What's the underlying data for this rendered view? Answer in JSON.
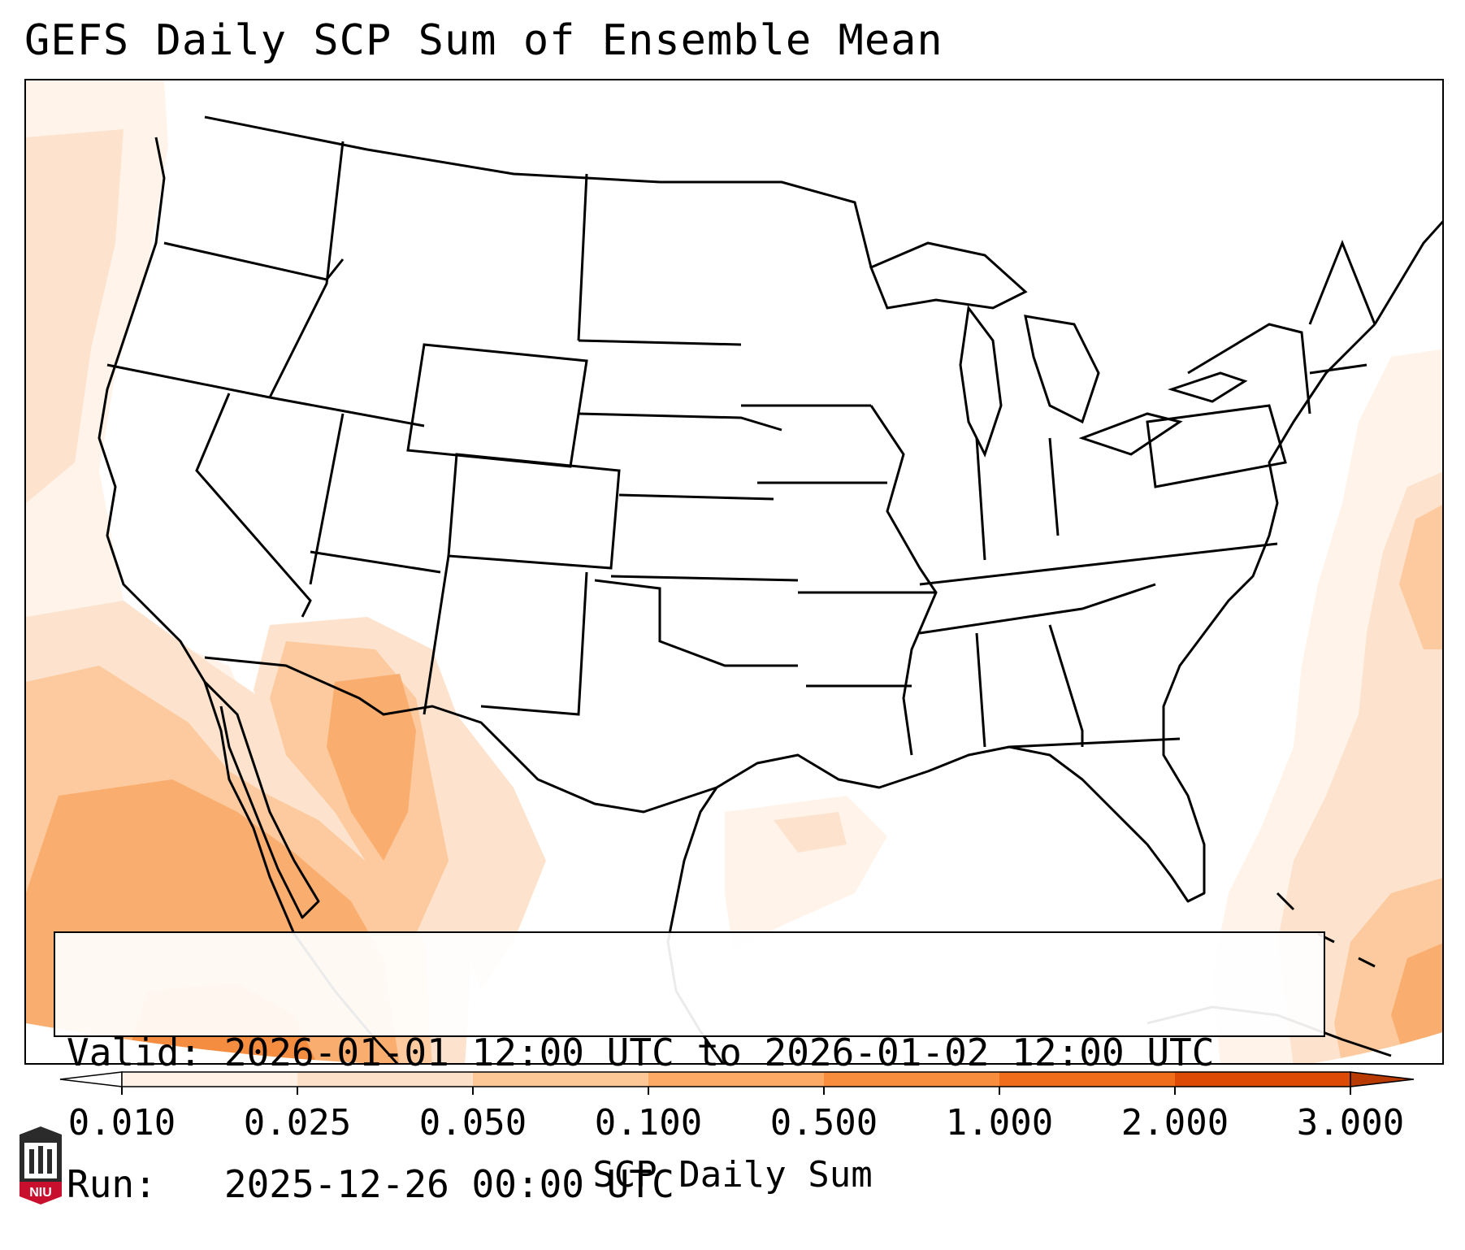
{
  "title": "GEFS Daily SCP Sum of Ensemble Mean",
  "info": {
    "valid_label": "Valid:",
    "valid_value": "2026-01-01 12:00 UTC to 2026-01-02 12:00 UTC",
    "run_label": "Run:",
    "run_value": "2025-12-26 00:00 UTC"
  },
  "colorbar": {
    "label": "SCP Daily Sum",
    "ticks": [
      "0.010",
      "0.025",
      "0.050",
      "0.100",
      "0.500",
      "1.000",
      "2.000",
      "3.000"
    ],
    "colors": [
      "#fff1e6",
      "#fde0c8",
      "#fdc896",
      "#fcaa66",
      "#f88d3e",
      "#f06d1c",
      "#dc4a06"
    ],
    "extend": "both"
  },
  "logo": {
    "text": "NIU",
    "color": "#c8102e"
  },
  "colors": {
    "level_1": "#fff3ea",
    "level_2": "#fde3cd",
    "level_3": "#fcca9e",
    "level_4": "#f9ad6e",
    "level_5": "#f58d40",
    "lines": "#000000"
  }
}
